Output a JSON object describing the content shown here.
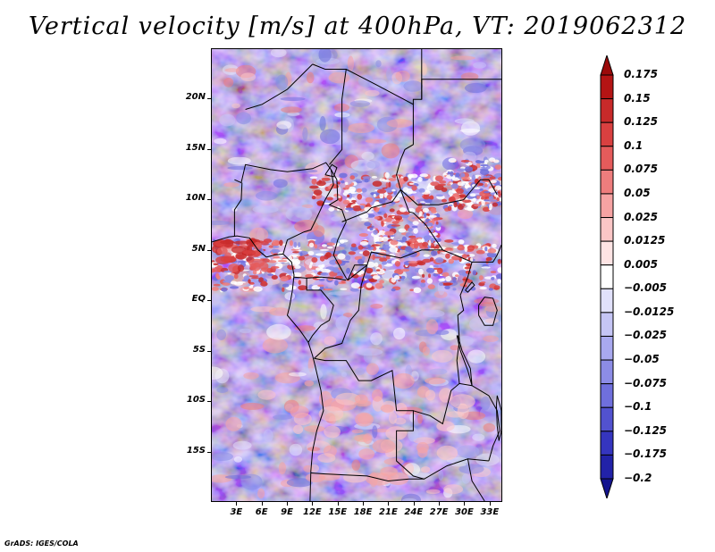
{
  "title": "Vertical velocity [m/s] at 400hPa, VT: 2019062312",
  "map": {
    "lat_labels": [
      "20N",
      "15N",
      "10N",
      "5N",
      "EQ",
      "5S",
      "10S",
      "15S"
    ],
    "lat_values": [
      20,
      15,
      10,
      5,
      0,
      -5,
      -10,
      -15
    ],
    "lon_labels": [
      "3E",
      "6E",
      "9E",
      "12E",
      "15E",
      "18E",
      "21E",
      "24E",
      "27E",
      "30E",
      "33E"
    ],
    "lon_values": [
      3,
      6,
      9,
      12,
      15,
      18,
      21,
      24,
      27,
      30,
      33
    ],
    "lat_range": [
      -20,
      25
    ],
    "lon_range": [
      0,
      34.5
    ]
  },
  "colorbar": {
    "labels": [
      "0.175",
      "0.15",
      "0.125",
      "0.1",
      "0.075",
      "0.05",
      "0.025",
      "0.0125",
      "0.005",
      "−0.005",
      "−0.0125",
      "−0.025",
      "−0.05",
      "−0.075",
      "−0.1",
      "−0.125",
      "−0.175",
      "−0.2"
    ],
    "colors": [
      "#9b0a0a",
      "#b41414",
      "#c82a2a",
      "#d94040",
      "#e55b5b",
      "#ee7d7d",
      "#f6a3a3",
      "#fbc6c6",
      "#fee4e4",
      "#ffffff",
      "#e1e1fb",
      "#c5c5f5",
      "#a9a9ef",
      "#8c8ce6",
      "#6f6fdc",
      "#5252cf",
      "#3535bf",
      "#2222a8",
      "#14148f"
    ]
  },
  "credit": "GrADS: IGES/COLA"
}
